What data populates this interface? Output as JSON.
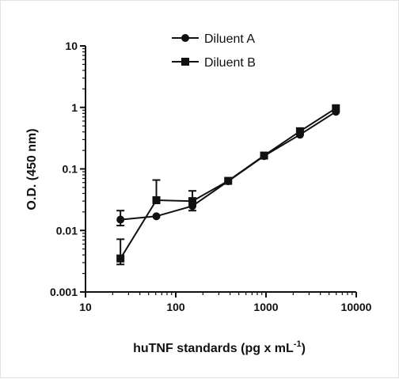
{
  "chart_data": {
    "type": "line",
    "xscale": "log",
    "yscale": "log",
    "xlim": [
      10,
      10000
    ],
    "ylim": [
      0.001,
      10
    ],
    "x_ticks": [
      "10",
      "100",
      "1000",
      "10000"
    ],
    "y_ticks": [
      "0.001",
      "0.01",
      "0.1",
      "1",
      "10"
    ],
    "xlabel": "huTNF standards (pg x mL",
    "xlabel_superscript": "-1",
    "xlabel_suffix": ")",
    "ylabel": "O.D. (450 nm)",
    "legend_position": "top-center",
    "grid": false,
    "series": [
      {
        "name": "Diluent A",
        "marker": "circle",
        "color": "#111111",
        "x": [
          24.4,
          61,
          153,
          381,
          952,
          2380,
          5950
        ],
        "y": [
          0.015,
          0.017,
          0.025,
          0.063,
          0.162,
          0.36,
          0.85
        ],
        "err_up": [
          0.021,
          null,
          0.032,
          null,
          null,
          null,
          null
        ],
        "err_down": [
          0.012,
          null,
          0.021,
          null,
          null,
          null,
          null
        ]
      },
      {
        "name": "Diluent B",
        "marker": "square",
        "color": "#111111",
        "x": [
          24.4,
          61,
          153,
          381,
          952,
          2380,
          5950
        ],
        "y": [
          0.0035,
          0.031,
          0.03,
          0.064,
          0.165,
          0.41,
          0.97
        ],
        "err_up": [
          0.0072,
          0.066,
          0.044,
          null,
          null,
          null,
          null
        ],
        "err_down": [
          0.0028,
          null,
          null,
          null,
          null,
          null,
          null
        ]
      }
    ]
  }
}
